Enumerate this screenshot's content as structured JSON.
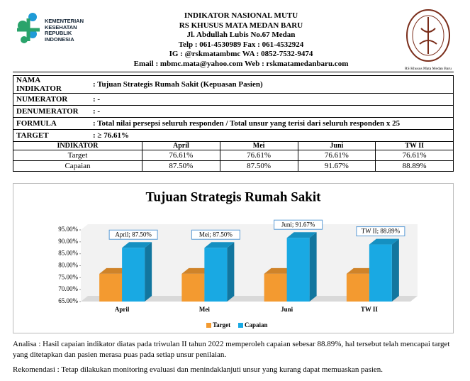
{
  "header": {
    "logo_text": [
      "KEMENTERIAN",
      "KESEHATAN",
      "REPUBLIK",
      "INDONESIA"
    ],
    "lines": [
      "INDIKATOR NASIONAL MUTU",
      "RS KHUSUS MATA MEDAN BARU",
      "Jl. Abdullah Lubis No.67 Medan",
      "Telp : 061-4530989  Fax : 061-4532924",
      "IG : @rskmatambmc  WA : 0852-7532-9474",
      "Email : mbmc.mata@yahoo.com  Web : rskmatamedanbaru.com"
    ],
    "right_logo_caption": "RS Khusus Mata Medan Baru"
  },
  "info": [
    {
      "label": "NAMA INDIKATOR",
      "value": ": Tujuan Strategis Rumah Sakit (Kepuasan Pasien)"
    },
    {
      "label": "NUMERATOR",
      "value": ": -"
    },
    {
      "label": "DENUMERATOR",
      "value": ": -"
    },
    {
      "label": "FORMULA",
      "value": ": Total nilai persepsi seluruh responden / Total unsur yang terisi dari seluruh responden x 25"
    },
    {
      "label": "TARGET",
      "value": ": ≥ 76.61%"
    }
  ],
  "table": {
    "header": [
      "INDIKATOR",
      "April",
      "Mei",
      "Juni",
      "TW II"
    ],
    "rows": [
      [
        "Target",
        "76.61%",
        "76.61%",
        "76.61%",
        "76.61%"
      ],
      [
        "Capaian",
        "87.50%",
        "87.50%",
        "91.67%",
        "88.89%"
      ]
    ]
  },
  "chart_data": {
    "type": "bar",
    "title": "Tujuan Strategis Rumah Sakit",
    "categories": [
      "April",
      "Mei",
      "Juni",
      "TW II"
    ],
    "series": [
      {
        "name": "Target",
        "color": "#f39a30",
        "values": [
          76.61,
          76.61,
          76.61,
          76.61
        ]
      },
      {
        "name": "Capaian",
        "color": "#19a9e3",
        "values": [
          87.5,
          87.5,
          91.67,
          88.89
        ],
        "value_labels": [
          "April; 87.50%",
          "Mei; 87.50%",
          "Juni; 91.67%",
          "TW II; 88.89%"
        ]
      }
    ],
    "ylim": [
      65,
      95
    ],
    "yticks": [
      {
        "value": 65,
        "label": "65.00%"
      },
      {
        "value": 70,
        "label": "70.00%"
      },
      {
        "value": 75,
        "label": "75.00%"
      },
      {
        "value": 80,
        "label": "80.00%"
      },
      {
        "value": 85,
        "label": "85.00%"
      },
      {
        "value": 90,
        "label": "90.00%"
      },
      {
        "value": 95,
        "label": "95.00%"
      }
    ],
    "legend": "bottom"
  },
  "analysis": "Analisa : Hasil capaian indikator diatas pada triwulan II tahun 2022 memperoleh capaian sebesar 88.89%, hal tersebut telah mencapai target yang ditetapkan dan pasien merasa puas pada setiap unsur penilaian.",
  "recommendation": "Rekomendasi : Tetap dilakukan monitoring evaluasi dan menindaklanjuti unsur yang kurang dapat memuaskan pasien."
}
